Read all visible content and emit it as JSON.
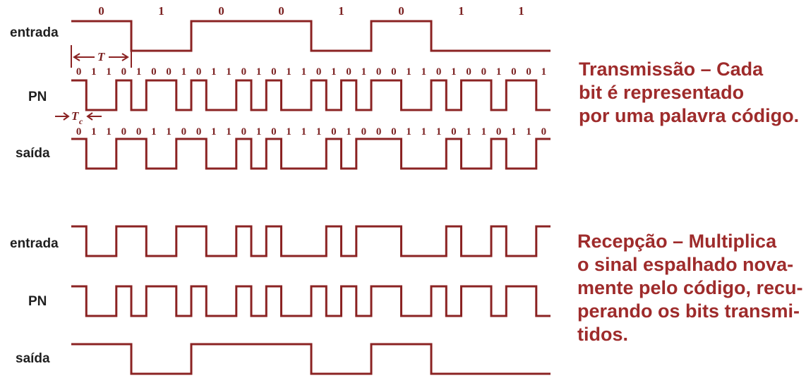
{
  "colors": {
    "wave": "#8b2323",
    "text": "#9e2b2b",
    "labels": "#1f1f1f"
  },
  "transmission": {
    "labels": {
      "input": "entrada",
      "pn": "PN",
      "output": "saída"
    },
    "data_bits": [
      "0",
      "1",
      "0",
      "0",
      "1",
      "0",
      "1",
      "1"
    ],
    "input_levels": [
      1,
      0,
      1,
      1,
      0,
      1,
      0,
      0
    ],
    "pn_chips": [
      "0",
      "1",
      "1",
      "0",
      "1",
      "0",
      "0",
      "1",
      "0",
      "1",
      "1",
      "0",
      "1",
      "0",
      "1",
      "1",
      "0",
      "1",
      "0",
      "1",
      "0",
      "0",
      "1",
      "1",
      "0",
      "1",
      "0",
      "0",
      "1",
      "0",
      "0",
      "1"
    ],
    "output_chips": [
      "0",
      "1",
      "1",
      "0",
      "0",
      "1",
      "1",
      "0",
      "0",
      "1",
      "1",
      "0",
      "1",
      "0",
      "1",
      "1",
      "1",
      "0",
      "1",
      "0",
      "0",
      "0",
      "1",
      "1",
      "1",
      "0",
      "1",
      "1",
      "0",
      "1",
      "1",
      "0"
    ],
    "period_symbol": "T",
    "chip_symbol": "T",
    "chip_subscript": "c",
    "description": [
      "Transmissão – Cada",
      "bit é representado",
      "por uma palavra código."
    ]
  },
  "reception": {
    "labels": {
      "input": "entrada",
      "pn": "PN",
      "output": "saída"
    },
    "description": [
      "Recepção – Multiplica",
      "o sinal espalhado nova-",
      "mente pelo código, recu-",
      "perando os bits transmi-",
      "tidos."
    ]
  }
}
